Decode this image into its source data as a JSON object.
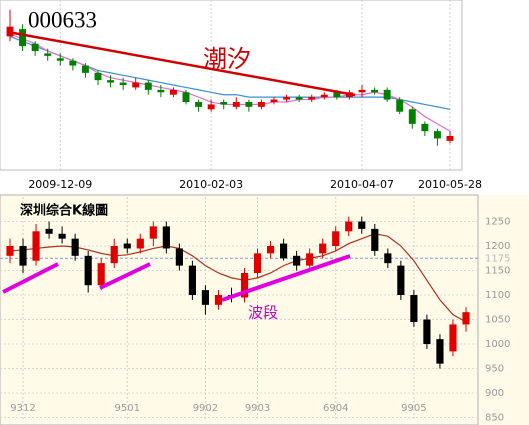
{
  "chart_data": [
    {
      "type": "candlestick",
      "title": "000633",
      "annotation": "潮汐",
      "categories": [
        null,
        null,
        null,
        null,
        "2009-12-09",
        null,
        null,
        null,
        null,
        null,
        null,
        null,
        null,
        null,
        null,
        null,
        "2010-02-03",
        null,
        null,
        null,
        null,
        null,
        null,
        null,
        null,
        null,
        null,
        null,
        "2010-04-07",
        null,
        null,
        null,
        null,
        null,
        null,
        "2010-05-28"
      ],
      "open": [
        12.5,
        12.8,
        12.2,
        11.8,
        11.6,
        11.5,
        11.3,
        11.0,
        10.7,
        10.6,
        10.4,
        10.6,
        10.3,
        10.1,
        10.2,
        9.8,
        9.5,
        9.8,
        9.6,
        9.8,
        9.6,
        9.8,
        9.9,
        10.0,
        9.9,
        10.0,
        10.2,
        10.0,
        10.2,
        10.3,
        10.3,
        9.9,
        9.5,
        8.9,
        8.6,
        8.2
      ],
      "high": [
        13.6,
        13.0,
        12.3,
        12.0,
        11.8,
        11.6,
        11.4,
        11.1,
        10.9,
        10.8,
        10.8,
        10.7,
        10.5,
        10.4,
        10.3,
        9.9,
        9.9,
        9.9,
        10.0,
        9.9,
        9.9,
        10.0,
        10.1,
        10.1,
        10.1,
        10.2,
        10.3,
        10.3,
        10.5,
        10.4,
        10.4,
        10.0,
        9.6,
        9.0,
        8.7,
        8.6
      ],
      "low": [
        12.3,
        11.9,
        11.7,
        11.5,
        11.3,
        11.1,
        10.8,
        10.5,
        10.4,
        10.3,
        10.3,
        10.1,
        10.0,
        10.0,
        9.7,
        9.4,
        9.4,
        9.5,
        9.5,
        9.4,
        9.5,
        9.7,
        9.8,
        9.8,
        9.8,
        9.9,
        9.9,
        9.9,
        10.0,
        10.1,
        9.8,
        9.3,
        8.7,
        8.4,
        8.0,
        8.1
      ],
      "close": [
        12.9,
        12.1,
        11.9,
        11.7,
        11.5,
        11.3,
        11.0,
        10.7,
        10.6,
        10.5,
        10.6,
        10.3,
        10.2,
        10.3,
        9.8,
        9.6,
        9.7,
        9.7,
        9.8,
        9.6,
        9.8,
        9.9,
        10.0,
        9.9,
        10.0,
        10.1,
        10.0,
        10.2,
        10.3,
        10.2,
        9.9,
        9.4,
        8.9,
        8.6,
        8.3,
        8.4
      ],
      "up_color": "#e00000",
      "down_color": "#008000",
      "ma_lines": [
        {
          "color": "#3a8fd0",
          "values": [
            12.5,
            12.3,
            12.1,
            11.9,
            11.7,
            11.5,
            11.3,
            11.1,
            11.0,
            10.9,
            10.8,
            10.7,
            10.6,
            10.5,
            10.4,
            10.3,
            10.2,
            10.1,
            10.1,
            10.0,
            10.0,
            10.0,
            10.0,
            10.0,
            10.0,
            10.0,
            10.0,
            10.0,
            10.0,
            10.0,
            10.0,
            9.9,
            9.8,
            9.7,
            9.6,
            9.5
          ]
        },
        {
          "color": "#e070d0",
          "values": [
            12.6,
            12.4,
            12.2,
            11.9,
            11.7,
            11.5,
            11.3,
            11.0,
            10.8,
            10.7,
            10.6,
            10.5,
            10.4,
            10.3,
            10.2,
            10.0,
            9.8,
            9.7,
            9.7,
            9.7,
            9.7,
            9.8,
            9.8,
            9.9,
            9.9,
            10.0,
            10.0,
            10.1,
            10.1,
            10.2,
            10.1,
            9.9,
            9.6,
            9.2,
            8.9,
            8.6
          ]
        }
      ],
      "ylim": [
        7,
        14
      ],
      "grid": true
    },
    {
      "type": "candlestick",
      "title": "深圳综合K線圖",
      "annotation": "波段",
      "categories": [
        null,
        "9312",
        null,
        null,
        null,
        null,
        null,
        null,
        null,
        "9501",
        null,
        null,
        null,
        null,
        null,
        "9902",
        null,
        null,
        null,
        "9903",
        null,
        null,
        null,
        null,
        null,
        "6904",
        null,
        null,
        null,
        null,
        null,
        "9905",
        null,
        null,
        null,
        null
      ],
      "open": [
        1180,
        1200,
        1170,
        1235,
        1225,
        1215,
        1180,
        1120,
        1165,
        1205,
        1195,
        1215,
        1240,
        1195,
        1160,
        1110,
        1080,
        1100,
        1095,
        1145,
        1185,
        1205,
        1180,
        1160,
        1185,
        1200,
        1230,
        1250,
        1235,
        1185,
        1160,
        1100,
        1050,
        1010,
        985,
        1040
      ],
      "high": [
        1215,
        1215,
        1245,
        1250,
        1240,
        1225,
        1190,
        1175,
        1215,
        1215,
        1225,
        1250,
        1250,
        1205,
        1170,
        1120,
        1110,
        1115,
        1155,
        1195,
        1210,
        1215,
        1190,
        1195,
        1215,
        1240,
        1260,
        1260,
        1245,
        1195,
        1170,
        1110,
        1060,
        1020,
        1050,
        1075
      ],
      "low": [
        1165,
        1145,
        1160,
        1215,
        1205,
        1170,
        1105,
        1110,
        1155,
        1185,
        1185,
        1200,
        1185,
        1150,
        1090,
        1060,
        1070,
        1085,
        1085,
        1135,
        1175,
        1170,
        1150,
        1150,
        1175,
        1190,
        1220,
        1225,
        1180,
        1155,
        1090,
        1035,
        990,
        950,
        975,
        1025
      ],
      "close": [
        1200,
        1160,
        1230,
        1225,
        1215,
        1180,
        1120,
        1165,
        1200,
        1195,
        1215,
        1240,
        1195,
        1160,
        1100,
        1080,
        1100,
        1095,
        1145,
        1185,
        1200,
        1175,
        1160,
        1185,
        1205,
        1230,
        1250,
        1235,
        1190,
        1165,
        1100,
        1045,
        1000,
        960,
        1040,
        1065
      ],
      "up_color": "#e00000",
      "down_color": "#000000",
      "ma_lines": [
        {
          "color": "#b03020",
          "values": [
            1190,
            1192,
            1195,
            1198,
            1200,
            1198,
            1192,
            1185,
            1180,
            1182,
            1188,
            1195,
            1200,
            1195,
            1180,
            1160,
            1145,
            1135,
            1130,
            1135,
            1145,
            1160,
            1170,
            1175,
            1180,
            1190,
            1205,
            1215,
            1225,
            1220,
            1200,
            1170,
            1130,
            1090,
            1060,
            1045
          ]
        }
      ],
      "reference": 1175,
      "ylim": [
        845,
        1300
      ],
      "yticks": [
        850,
        900,
        950,
        1000,
        1050,
        1100,
        1150,
        1200,
        1250
      ],
      "grid": true
    }
  ]
}
